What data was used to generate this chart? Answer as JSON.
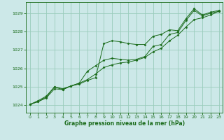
{
  "title": "Graphe pression niveau de la mer (hPa)",
  "background_color": "#cce8e8",
  "grid_color": "#99ccbb",
  "line_color": "#1a6b1a",
  "marker_color": "#1a6b1a",
  "xlim": [
    -0.5,
    23.5
  ],
  "ylim": [
    1023.6,
    1029.6
  ],
  "xticks": [
    0,
    1,
    2,
    3,
    4,
    5,
    6,
    7,
    8,
    9,
    10,
    11,
    12,
    13,
    14,
    15,
    16,
    17,
    18,
    19,
    20,
    21,
    22,
    23
  ],
  "yticks": [
    1024,
    1025,
    1026,
    1027,
    1028,
    1029
  ],
  "series1": [
    [
      0,
      1024.05
    ],
    [
      1,
      1024.25
    ],
    [
      2,
      1024.5
    ],
    [
      3,
      1025.0
    ],
    [
      4,
      1024.9
    ],
    [
      5,
      1025.05
    ],
    [
      6,
      1025.15
    ],
    [
      7,
      1025.35
    ],
    [
      8,
      1025.5
    ],
    [
      9,
      1027.35
    ],
    [
      10,
      1027.5
    ],
    [
      11,
      1027.45
    ],
    [
      12,
      1027.35
    ],
    [
      13,
      1027.3
    ],
    [
      14,
      1027.3
    ],
    [
      15,
      1027.75
    ],
    [
      16,
      1027.85
    ],
    [
      17,
      1028.1
    ],
    [
      18,
      1028.05
    ],
    [
      19,
      1028.7
    ],
    [
      20,
      1029.25
    ],
    [
      21,
      1028.9
    ],
    [
      22,
      1029.05
    ],
    [
      23,
      1029.15
    ]
  ],
  "series2": [
    [
      0,
      1024.05
    ],
    [
      1,
      1024.2
    ],
    [
      2,
      1024.45
    ],
    [
      3,
      1025.0
    ],
    [
      4,
      1024.85
    ],
    [
      5,
      1025.05
    ],
    [
      6,
      1025.2
    ],
    [
      7,
      1025.85
    ],
    [
      8,
      1026.15
    ],
    [
      9,
      1026.45
    ],
    [
      10,
      1026.55
    ],
    [
      11,
      1026.5
    ],
    [
      12,
      1026.45
    ],
    [
      13,
      1026.5
    ],
    [
      14,
      1026.65
    ],
    [
      15,
      1027.2
    ],
    [
      16,
      1027.3
    ],
    [
      17,
      1027.85
    ],
    [
      18,
      1027.95
    ],
    [
      19,
      1028.6
    ],
    [
      20,
      1029.15
    ],
    [
      21,
      1028.85
    ],
    [
      22,
      1029.0
    ],
    [
      23,
      1029.1
    ]
  ],
  "series3": [
    [
      0,
      1024.05
    ],
    [
      1,
      1024.2
    ],
    [
      2,
      1024.4
    ],
    [
      3,
      1024.9
    ],
    [
      4,
      1024.85
    ],
    [
      5,
      1025.05
    ],
    [
      6,
      1025.2
    ],
    [
      7,
      1025.4
    ],
    [
      8,
      1025.7
    ],
    [
      9,
      1026.05
    ],
    [
      10,
      1026.2
    ],
    [
      11,
      1026.3
    ],
    [
      12,
      1026.35
    ],
    [
      13,
      1026.45
    ],
    [
      14,
      1026.6
    ],
    [
      15,
      1026.9
    ],
    [
      16,
      1027.1
    ],
    [
      17,
      1027.5
    ],
    [
      18,
      1027.8
    ],
    [
      19,
      1028.25
    ],
    [
      20,
      1028.65
    ],
    [
      21,
      1028.75
    ],
    [
      22,
      1028.9
    ],
    [
      23,
      1029.1
    ]
  ]
}
